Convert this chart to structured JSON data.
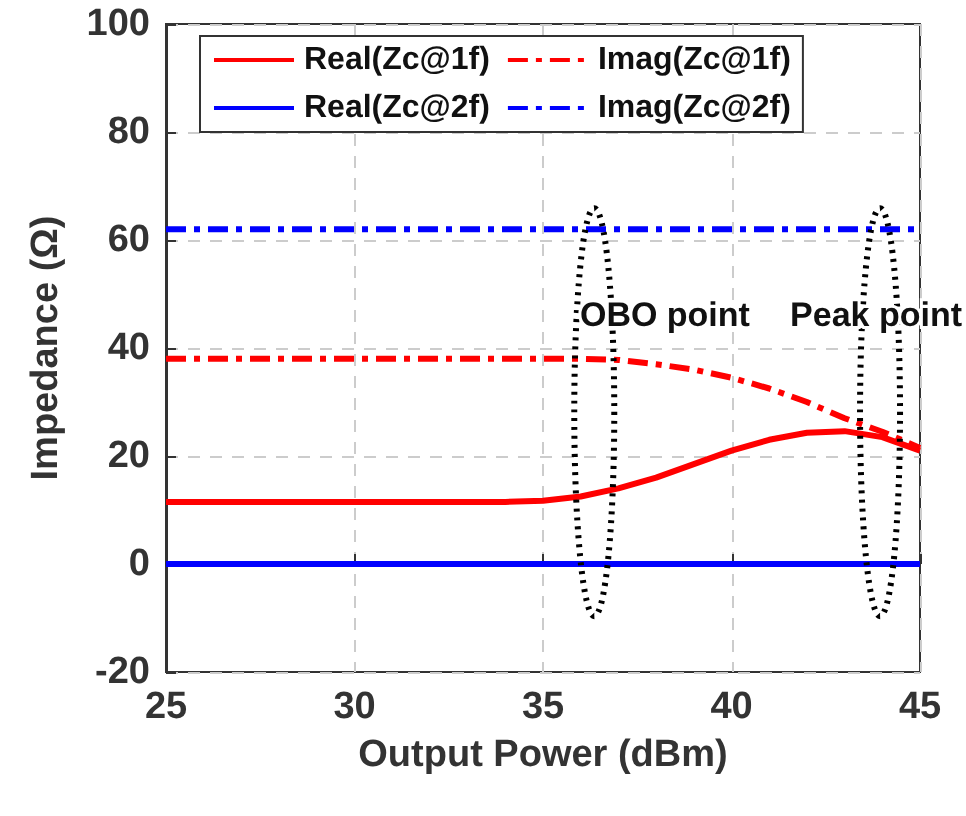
{
  "chart_data": {
    "type": "line",
    "xlabel": "Output Power (dBm)",
    "ylabel": "Impedance (Ω)",
    "x": [
      25,
      30,
      34,
      35,
      36,
      37,
      38,
      39,
      40,
      41,
      42,
      43,
      44,
      45
    ],
    "series": [
      {
        "name": "Real(Zc@1f)",
        "color": "#ff0000",
        "line_style": "solid",
        "values": [
          11.5,
          11.5,
          11.5,
          11.7,
          12.5,
          14,
          16,
          18.5,
          21,
          23,
          24.3,
          24.6,
          23.5,
          21
        ]
      },
      {
        "name": "Imag(Zc@1f)",
        "color": "#ff0000",
        "line_style": "dashdot",
        "values": [
          38,
          38,
          38,
          38,
          38,
          37.8,
          37,
          36,
          34.5,
          32.5,
          30,
          27,
          24.5,
          21.5
        ]
      },
      {
        "name": "Real(Zc@2f)",
        "color": "#0000ff",
        "line_style": "solid",
        "values": [
          0,
          0,
          0,
          0,
          0,
          0,
          0,
          0,
          0,
          0,
          0,
          0,
          0,
          0
        ]
      },
      {
        "name": "Imag(Zc@2f)",
        "color": "#0000ff",
        "line_style": "dashdot",
        "values": [
          62,
          62,
          62,
          62,
          62,
          62,
          62,
          62,
          62,
          62,
          62,
          62,
          62,
          62
        ]
      }
    ],
    "xlim": [
      25,
      45
    ],
    "xticks": [
      25,
      30,
      35,
      40,
      45
    ],
    "ylim": [
      -20,
      100
    ],
    "yticks": [
      -20,
      0,
      20,
      40,
      60,
      80,
      100
    ],
    "grid": true,
    "legend": "top",
    "marker": "none",
    "annotations": [
      "OBO point",
      "Peak point"
    ]
  }
}
